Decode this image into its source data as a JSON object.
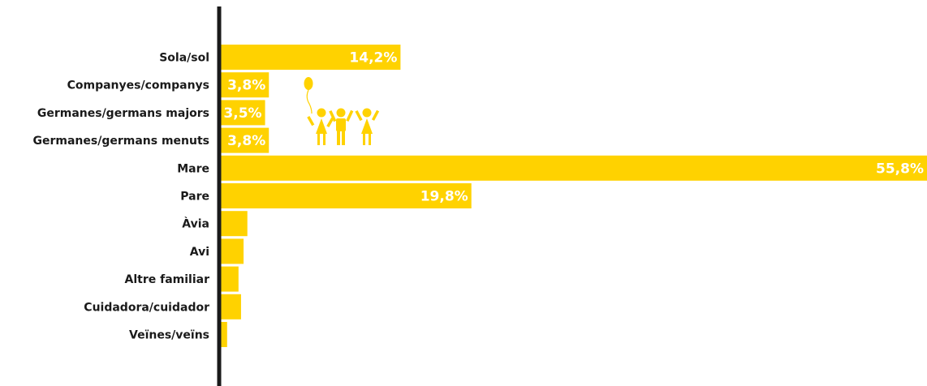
{
  "chart_data": {
    "type": "bar",
    "orientation": "horizontal",
    "categories": [
      "Sola/sol",
      "Companyes/companys",
      "Germanes/germans majors",
      "Germanes/germans menuts",
      "Mare",
      "Pare",
      "Àvia",
      "Avi",
      "Altre familiar",
      "Cuidadora/cuidador",
      "Veïnes/veïns"
    ],
    "values": [
      14.2,
      3.8,
      3.5,
      3.8,
      55.8,
      19.8,
      2.1,
      1.8,
      1.4,
      1.6,
      0.5
    ],
    "data_labels": [
      "14,2%",
      "3,8%",
      "3,5%",
      "3,8%",
      "55,8%",
      "19,8%",
      "",
      "",
      "",
      "",
      ""
    ],
    "xlim": [
      0,
      55.8
    ],
    "grid": false,
    "bar_color": "#ffd200",
    "axis_color": "#1a1a1a",
    "label_color": "#ffffff"
  },
  "illustration": {
    "icon": "children-with-balloon-icon",
    "color": "#ffd200"
  }
}
